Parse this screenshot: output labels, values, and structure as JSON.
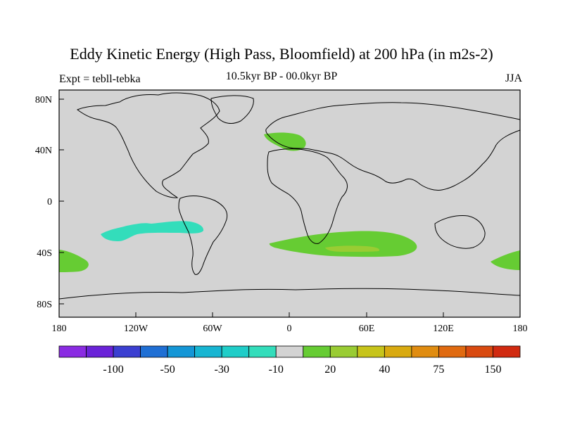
{
  "title": "Eddy Kinetic Energy (High Pass, Bloomfield) at 200 hPa (in m2s-2)",
  "left_label": "Expt = tebll-tebka",
  "center_label": "10.5kyr BP - 00.0kyr BP",
  "right_label": "JJA",
  "map": {
    "ocean_land_fill": "#d3d3d3",
    "coastline_color": "#000000",
    "lat_ticks": [
      "80N",
      "40N",
      "0",
      "40S",
      "80S"
    ],
    "lon_ticks": [
      "180",
      "120W",
      "60W",
      "0",
      "60E",
      "120E",
      "180"
    ],
    "anomaly_regions": [
      {
        "name": "europe-positive",
        "color": "#66cc33"
      },
      {
        "name": "south-pacific-negative",
        "color": "#33ddbb"
      },
      {
        "name": "south-indian-positive",
        "color": "#66cc33"
      },
      {
        "name": "south-indian-core",
        "color": "#99cc33"
      },
      {
        "name": "new-zealand-positive",
        "color": "#66cc33"
      },
      {
        "name": "far-west-pacific-positive",
        "color": "#66cc33"
      }
    ]
  },
  "colorbar": {
    "colors": [
      "#8a2be2",
      "#6a22d8",
      "#3b3fd1",
      "#1f6fd4",
      "#1496d6",
      "#17b5d2",
      "#1fcdc8",
      "#33ddbb",
      "#d3d3d3",
      "#66cc33",
      "#99cc33",
      "#c7c41a",
      "#d9aa10",
      "#e08c10",
      "#e06a10",
      "#d94a10",
      "#d12a10"
    ],
    "labels": [
      "-100",
      "-50",
      "-30",
      "-10",
      "20",
      "40",
      "75",
      "150"
    ]
  }
}
